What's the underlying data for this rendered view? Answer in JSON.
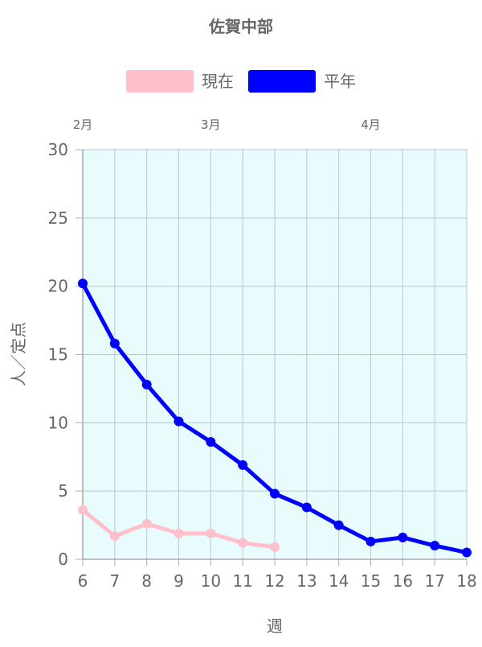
{
  "chart_data": {
    "type": "line",
    "title": "佐賀中部",
    "xlabel": "週",
    "ylabel": "人／定点",
    "x": [
      6,
      7,
      8,
      9,
      10,
      11,
      12,
      13,
      14,
      15,
      16,
      17,
      18
    ],
    "xlim": [
      6,
      18
    ],
    "ylim": [
      0,
      30
    ],
    "yticks": [
      0,
      5,
      10,
      15,
      20,
      25,
      30
    ],
    "grid": true,
    "legend_position": "top",
    "plot_background": "#e8fcfd",
    "month_labels": [
      {
        "label": "2月",
        "x": 6
      },
      {
        "label": "3月",
        "x": 10
      },
      {
        "label": "4月",
        "x": 15
      }
    ],
    "series": [
      {
        "name": "現在",
        "color": "#ffc0cb",
        "values": [
          3.6,
          1.7,
          2.6,
          1.9,
          1.9,
          1.2,
          0.9,
          null,
          null,
          null,
          null,
          null,
          null
        ]
      },
      {
        "name": "平年",
        "color": "#0000ff",
        "values": [
          20.2,
          15.8,
          12.8,
          10.1,
          8.6,
          6.9,
          4.8,
          3.8,
          2.5,
          1.3,
          1.6,
          1.0,
          0.5
        ]
      }
    ]
  }
}
